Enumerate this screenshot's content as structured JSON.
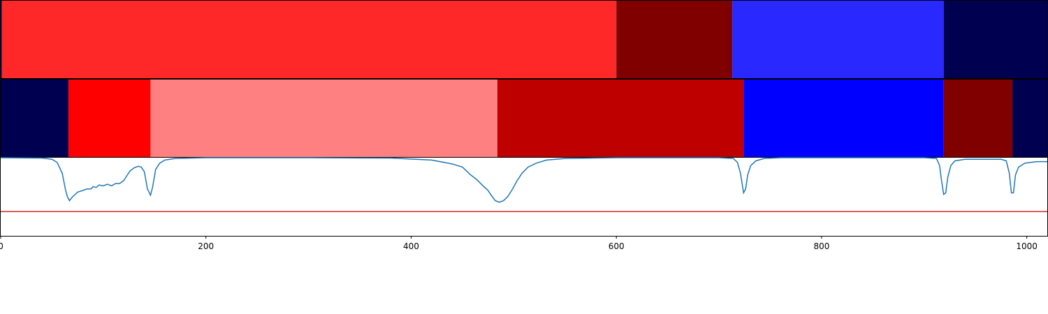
{
  "chart_data": {
    "type": "heatmap",
    "title": "",
    "xlabel": "",
    "ylabel": "",
    "xlim": [
      0,
      1020
    ],
    "x_ticks": [
      0,
      200,
      400,
      600,
      800,
      1000
    ],
    "x_tick_labels": [
      "0",
      "200",
      "400",
      "600",
      "800",
      "1000"
    ],
    "grid": false,
    "segment_rows": [
      {
        "segments": [
          {
            "start": 0,
            "end": 1,
            "color": "#000055"
          },
          {
            "start": 1,
            "end": 600,
            "color": "#ff2828"
          },
          {
            "start": 600,
            "end": 713,
            "color": "#800000"
          },
          {
            "start": 713,
            "end": 919,
            "color": "#2828ff"
          },
          {
            "start": 919,
            "end": 1020,
            "color": "#000050"
          }
        ]
      },
      {
        "segments": [
          {
            "start": 0,
            "end": 66,
            "color": "#000050"
          },
          {
            "start": 66,
            "end": 146,
            "color": "#ff0000"
          },
          {
            "start": 146,
            "end": 484,
            "color": "#ff8080"
          },
          {
            "start": 484,
            "end": 724,
            "color": "#bf0000"
          },
          {
            "start": 724,
            "end": 919,
            "color": "#0000ff"
          },
          {
            "start": 919,
            "end": 986,
            "color": "#800000"
          },
          {
            "start": 986,
            "end": 1020,
            "color": "#000050"
          }
        ]
      }
    ],
    "line_panel": {
      "ylim": [
        0,
        1
      ],
      "series": [
        {
          "color": "#1f77b4",
          "points": [
            [
              0,
              1
            ],
            [
              40,
              0.995
            ],
            [
              50,
              0.98
            ],
            [
              55,
              0.94
            ],
            [
              60,
              0.8
            ],
            [
              63,
              0.6
            ],
            [
              65,
              0.5
            ],
            [
              67,
              0.45
            ],
            [
              70,
              0.5
            ],
            [
              75,
              0.56
            ],
            [
              80,
              0.58
            ],
            [
              84,
              0.6
            ],
            [
              88,
              0.6
            ],
            [
              90,
              0.63
            ],
            [
              93,
              0.62
            ],
            [
              96,
              0.65
            ],
            [
              100,
              0.64
            ],
            [
              104,
              0.66
            ],
            [
              108,
              0.64
            ],
            [
              112,
              0.67
            ],
            [
              116,
              0.67
            ],
            [
              120,
              0.71
            ],
            [
              123,
              0.77
            ],
            [
              126,
              0.83
            ],
            [
              130,
              0.87
            ],
            [
              134,
              0.89
            ],
            [
              137,
              0.88
            ],
            [
              140,
              0.82
            ],
            [
              143,
              0.6
            ],
            [
              146,
              0.52
            ],
            [
              148,
              0.62
            ],
            [
              151,
              0.85
            ],
            [
              155,
              0.93
            ],
            [
              160,
              0.97
            ],
            [
              170,
              0.99
            ],
            [
              200,
              1
            ],
            [
              300,
              1
            ],
            [
              380,
              0.995
            ],
            [
              420,
              0.97
            ],
            [
              440,
              0.92
            ],
            [
              450,
              0.88
            ],
            [
              458,
              0.78
            ],
            [
              464,
              0.72
            ],
            [
              470,
              0.64
            ],
            [
              475,
              0.58
            ],
            [
              478,
              0.52
            ],
            [
              482,
              0.45
            ],
            [
              486,
              0.43
            ],
            [
              490,
              0.45
            ],
            [
              494,
              0.5
            ],
            [
              498,
              0.58
            ],
            [
              503,
              0.7
            ],
            [
              508,
              0.8
            ],
            [
              514,
              0.88
            ],
            [
              522,
              0.93
            ],
            [
              532,
              0.97
            ],
            [
              550,
              0.99
            ],
            [
              600,
              1
            ],
            [
              700,
              1
            ],
            [
              714,
              0.99
            ],
            [
              718,
              0.94
            ],
            [
              721,
              0.8
            ],
            [
              724,
              0.55
            ],
            [
              726,
              0.6
            ],
            [
              728,
              0.78
            ],
            [
              731,
              0.9
            ],
            [
              736,
              0.96
            ],
            [
              744,
              0.99
            ],
            [
              760,
              1
            ],
            [
              900,
              1
            ],
            [
              912,
              0.99
            ],
            [
              915,
              0.9
            ],
            [
              917,
              0.7
            ],
            [
              919,
              0.53
            ],
            [
              921,
              0.55
            ],
            [
              923,
              0.75
            ],
            [
              926,
              0.9
            ],
            [
              930,
              0.96
            ],
            [
              940,
              0.98
            ],
            [
              975,
              0.98
            ],
            [
              980,
              0.96
            ],
            [
              983,
              0.8
            ],
            [
              985,
              0.55
            ],
            [
              987,
              0.55
            ],
            [
              989,
              0.78
            ],
            [
              992,
              0.88
            ],
            [
              998,
              0.93
            ],
            [
              1010,
              0.95
            ],
            [
              1020,
              0.95
            ]
          ]
        },
        {
          "color": "#d62728",
          "points": [
            [
              0,
              0.31
            ],
            [
              1020,
              0.31
            ]
          ]
        }
      ]
    }
  }
}
